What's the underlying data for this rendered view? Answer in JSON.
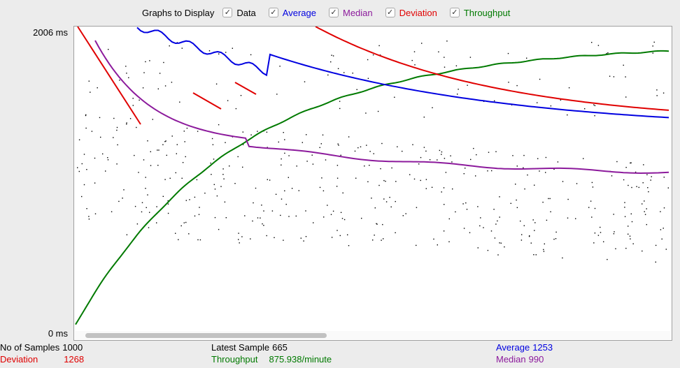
{
  "toolbar": {
    "label": "Graphs to Display",
    "checkboxes": [
      {
        "label": "Data",
        "checked": true,
        "color": "#000000"
      },
      {
        "label": "Average",
        "checked": true,
        "color": "#0000e0"
      },
      {
        "label": "Median",
        "checked": true,
        "color": "#8c1a9c"
      },
      {
        "label": "Deviation",
        "checked": true,
        "color": "#e00000"
      },
      {
        "label": "Throughput",
        "checked": true,
        "color": "#007a00"
      }
    ]
  },
  "axis": {
    "y_max_label": "2006 ms",
    "y_min_label": "0 ms"
  },
  "stats": {
    "samples": {
      "label": "No of Samples",
      "value": "1000"
    },
    "deviation": {
      "label": "Deviation",
      "value": "1268"
    },
    "latest": {
      "label": "Latest Sample",
      "value": "665"
    },
    "throughput": {
      "label": "Throughput",
      "value": "875.938/minute"
    },
    "average": {
      "label": "Average",
      "value": "1253"
    },
    "median": {
      "label": "Median",
      "value": "990"
    }
  },
  "chart_data": {
    "type": "line",
    "y_unit": "ms",
    "ylim": [
      0,
      2006
    ],
    "series_colors": {
      "data": "#000000",
      "average": "#0000e0",
      "median": "#8c1a9c",
      "deviation": "#e00000",
      "throughput": "#007a00"
    },
    "final": {
      "samples": 1000,
      "average": 1253,
      "median": 990,
      "deviation": 1268,
      "latest": 665
    }
  }
}
